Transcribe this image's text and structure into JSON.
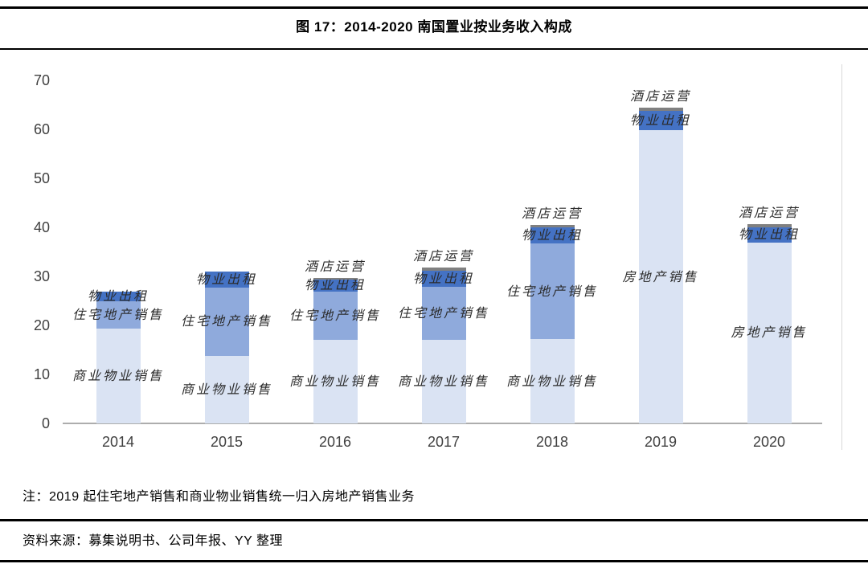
{
  "header": {
    "title": "图 17：2014-2020 南国置业按业务收入构成"
  },
  "footer": {
    "note": "注：2019 起住宅地产销售和商业物业销售统一归入房地产销售业务",
    "source": "资料来源：募集说明书、公司年报、YY 整理"
  },
  "chart_data": {
    "type": "bar",
    "stacked": true,
    "title": "图 17：2014-2020 南国置业按业务收入构成",
    "xlabel": "",
    "ylabel": "",
    "ylim": [
      0,
      70
    ],
    "yticks": [
      0,
      10,
      20,
      30,
      40,
      50,
      60,
      70
    ],
    "grid": false,
    "legend_position": "none (segments labeled inline next to bars)",
    "categories": [
      "2014",
      "2015",
      "2016",
      "2017",
      "2018",
      "2019",
      "2020"
    ],
    "colors": {
      "light": "#dae3f3",
      "medium": "#8faadc",
      "dark": "#4472c4",
      "hotel": "#808080",
      "axis": "#adadad",
      "tick_text": "#404040",
      "label_text": "#2b2b2b"
    },
    "bars": [
      {
        "year": "2014",
        "segments": [
          {
            "label": "商业物业销售",
            "color_key": "light",
            "value": 19.3
          },
          {
            "label": "住宅地产销售",
            "color_key": "medium",
            "value": 5.6
          },
          {
            "label": "物业出租",
            "color_key": "dark",
            "value": 2.0
          }
        ]
      },
      {
        "year": "2015",
        "segments": [
          {
            "label": "商业物业销售",
            "color_key": "light",
            "value": 13.8
          },
          {
            "label": "住宅地产销售",
            "color_key": "medium",
            "value": 13.9
          },
          {
            "label": "物业出租",
            "color_key": "dark",
            "value": 3.3
          }
        ]
      },
      {
        "year": "2016",
        "segments": [
          {
            "label": "商业物业销售",
            "color_key": "light",
            "value": 17.0
          },
          {
            "label": "住宅地产销售",
            "color_key": "medium",
            "value": 9.9
          },
          {
            "label": "物业出租",
            "color_key": "dark",
            "value": 2.5
          },
          {
            "label": "酒店运营",
            "color_key": "hotel",
            "value": 0.3
          }
        ]
      },
      {
        "year": "2017",
        "segments": [
          {
            "label": "商业物业销售",
            "color_key": "light",
            "value": 17.0
          },
          {
            "label": "住宅地产销售",
            "color_key": "medium",
            "value": 10.9
          },
          {
            "label": "物业出租",
            "color_key": "dark",
            "value": 3.2
          },
          {
            "label": "酒店运营",
            "color_key": "hotel",
            "value": 0.7
          }
        ]
      },
      {
        "year": "2018",
        "segments": [
          {
            "label": "商业物业销售",
            "color_key": "light",
            "value": 17.2
          },
          {
            "label": "住宅地产销售",
            "color_key": "medium",
            "value": 19.5
          },
          {
            "label": "物业出租",
            "color_key": "dark",
            "value": 3.3
          },
          {
            "label": "酒店运营",
            "color_key": "hotel",
            "value": 0.5
          }
        ]
      },
      {
        "year": "2019",
        "segments": [
          {
            "label": "房地产销售",
            "color_key": "light",
            "value": 59.8
          },
          {
            "label": "物业出租",
            "color_key": "dark",
            "value": 4.0
          },
          {
            "label": "酒店运营",
            "color_key": "hotel",
            "value": 0.6
          }
        ]
      },
      {
        "year": "2020",
        "segments": [
          {
            "label": "房地产销售",
            "color_key": "light",
            "value": 36.9
          },
          {
            "label": "物业出租",
            "color_key": "dark",
            "value": 3.1
          },
          {
            "label": "酒店运营",
            "color_key": "hotel",
            "value": 0.7
          }
        ]
      }
    ]
  }
}
